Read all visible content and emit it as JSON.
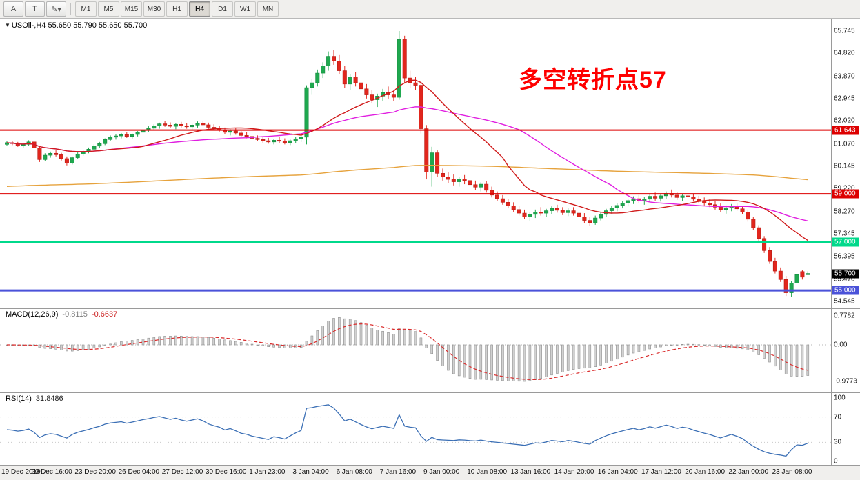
{
  "toolbar": {
    "buttons": [
      {
        "label": "A",
        "name": "font-tool-button"
      },
      {
        "label": "T",
        "name": "text-tool-button"
      },
      {
        "label": "✎▾",
        "name": "drawing-tools-button"
      }
    ],
    "timeframes": [
      {
        "label": "M1"
      },
      {
        "label": "M5"
      },
      {
        "label": "M15"
      },
      {
        "label": "M30"
      },
      {
        "label": "H1"
      },
      {
        "label": "H4",
        "active": true
      },
      {
        "label": "D1"
      },
      {
        "label": "W1"
      },
      {
        "label": "MN"
      }
    ]
  },
  "chart": {
    "symbol": "USOil-,H4",
    "ohlc": "55.650 55.790 55.650 55.700",
    "annotation": {
      "text": "多空转折点57",
      "color": "#ff0000"
    }
  },
  "panels": {
    "macd": {
      "label": "MACD(12,26,9)",
      "value": "-0.8115",
      "signal_value": "-0.6637",
      "scale_labels": [
        "0.7782",
        "0.00",
        "-0.9773"
      ]
    },
    "rsi": {
      "label": "RSI(14)",
      "value": "31.8486",
      "scale_labels": [
        "100",
        "70",
        "30",
        "0"
      ]
    }
  },
  "chart_data": {
    "type": "candlestick",
    "symbol": "USOil-",
    "timeframe": "H4",
    "title": "USOil-,H4 55.650 55.790 55.650 55.700",
    "current_bar": {
      "open": 55.65,
      "high": 55.79,
      "low": 55.65,
      "close": 55.7
    },
    "y_axis": {
      "max": 65.745,
      "min": 54.545,
      "labels": [
        65.745,
        64.82,
        63.87,
        62.945,
        62.02,
        61.07,
        60.145,
        59.22,
        58.27,
        57.345,
        56.395,
        55.47,
        54.545
      ]
    },
    "x_labels": [
      "19 Dec 2019",
      "20 Dec 16:00",
      "23 Dec 20:00",
      "26 Dec 04:00",
      "27 Dec 12:00",
      "30 Dec 16:00",
      "1 Jan 23:00",
      "3 Jan 04:00",
      "6 Jan 08:00",
      "7 Jan 16:00",
      "9 Jan 00:00",
      "10 Jan 08:00",
      "13 Jan 16:00",
      "14 Jan 20:00",
      "16 Jan 04:00",
      "17 Jan 12:00",
      "20 Jan 16:00",
      "22 Jan 00:00",
      "23 Jan 08:00"
    ],
    "x_label_every_n_candles": 8,
    "candles": [
      [
        61.05,
        61.18,
        60.98,
        61.12
      ],
      [
        61.12,
        61.2,
        61.02,
        61.08
      ],
      [
        61.08,
        61.15,
        60.95,
        61.0
      ],
      [
        61.0,
        61.12,
        60.92,
        61.05
      ],
      [
        61.05,
        61.22,
        61.0,
        61.15
      ],
      [
        61.15,
        61.18,
        60.85,
        60.9
      ],
      [
        60.9,
        60.95,
        60.32,
        60.42
      ],
      [
        60.42,
        60.68,
        60.35,
        60.6
      ],
      [
        60.6,
        60.75,
        60.5,
        60.68
      ],
      [
        60.68,
        60.8,
        60.55,
        60.62
      ],
      [
        60.62,
        60.7,
        60.38,
        60.46
      ],
      [
        60.46,
        60.55,
        60.18,
        60.28
      ],
      [
        60.28,
        60.55,
        60.22,
        60.5
      ],
      [
        60.5,
        60.72,
        60.44,
        60.65
      ],
      [
        60.65,
        60.82,
        60.58,
        60.75
      ],
      [
        60.75,
        60.92,
        60.68,
        60.85
      ],
      [
        60.85,
        61.05,
        60.78,
        60.98
      ],
      [
        60.98,
        61.15,
        60.9,
        61.08
      ],
      [
        61.08,
        61.3,
        61.02,
        61.25
      ],
      [
        61.25,
        61.42,
        61.18,
        61.35
      ],
      [
        61.35,
        61.48,
        61.25,
        61.4
      ],
      [
        61.4,
        61.52,
        61.3,
        61.45
      ],
      [
        61.45,
        61.55,
        61.32,
        61.38
      ],
      [
        61.38,
        61.5,
        61.28,
        61.46
      ],
      [
        61.46,
        61.6,
        61.38,
        61.55
      ],
      [
        61.55,
        61.7,
        61.48,
        61.65
      ],
      [
        61.65,
        61.8,
        61.55,
        61.72
      ],
      [
        61.72,
        61.88,
        61.62,
        61.82
      ],
      [
        61.82,
        61.95,
        61.7,
        61.9
      ],
      [
        61.9,
        62.02,
        61.78,
        61.85
      ],
      [
        61.85,
        61.96,
        61.72,
        61.8
      ],
      [
        61.8,
        61.92,
        61.68,
        61.88
      ],
      [
        61.88,
        61.98,
        61.75,
        61.82
      ],
      [
        61.82,
        61.94,
        61.7,
        61.78
      ],
      [
        61.78,
        61.9,
        61.65,
        61.85
      ],
      [
        61.85,
        62.0,
        61.75,
        61.92
      ],
      [
        61.92,
        62.02,
        61.8,
        61.86
      ],
      [
        61.86,
        61.95,
        61.7,
        61.76
      ],
      [
        61.76,
        61.88,
        61.62,
        61.7
      ],
      [
        61.7,
        61.82,
        61.58,
        61.65
      ],
      [
        61.65,
        61.75,
        61.48,
        61.55
      ],
      [
        61.55,
        61.68,
        61.42,
        61.6
      ],
      [
        61.6,
        61.72,
        61.45,
        61.52
      ],
      [
        61.52,
        61.6,
        61.35,
        61.42
      ],
      [
        61.42,
        61.55,
        61.3,
        61.38
      ],
      [
        61.38,
        61.48,
        61.22,
        61.3
      ],
      [
        61.3,
        61.42,
        61.18,
        61.25
      ],
      [
        61.25,
        61.38,
        61.12,
        61.2
      ],
      [
        61.2,
        61.32,
        61.08,
        61.15
      ],
      [
        61.15,
        61.28,
        61.05,
        61.22
      ],
      [
        61.22,
        61.35,
        61.1,
        61.18
      ],
      [
        61.18,
        61.3,
        61.05,
        61.12
      ],
      [
        61.12,
        61.25,
        61.02,
        61.2
      ],
      [
        61.2,
        61.35,
        61.1,
        61.28
      ],
      [
        61.28,
        61.45,
        61.15,
        61.35
      ],
      [
        61.35,
        63.5,
        61.05,
        63.4
      ],
      [
        63.4,
        63.75,
        63.1,
        63.6
      ],
      [
        63.6,
        64.15,
        63.45,
        64.0
      ],
      [
        64.0,
        64.45,
        63.8,
        64.3
      ],
      [
        64.3,
        64.9,
        64.1,
        64.7
      ],
      [
        64.7,
        64.97,
        64.35,
        64.5
      ],
      [
        64.5,
        64.75,
        63.95,
        64.1
      ],
      [
        64.1,
        64.3,
        63.4,
        63.55
      ],
      [
        63.55,
        63.95,
        63.3,
        63.85
      ],
      [
        63.85,
        64.05,
        63.45,
        63.6
      ],
      [
        63.6,
        63.8,
        63.2,
        63.35
      ],
      [
        63.35,
        63.55,
        62.95,
        63.1
      ],
      [
        63.1,
        63.3,
        62.75,
        62.9
      ],
      [
        62.9,
        63.15,
        62.6,
        63.05
      ],
      [
        63.05,
        63.35,
        62.85,
        63.2
      ],
      [
        63.2,
        63.45,
        62.95,
        63.1
      ],
      [
        63.1,
        63.3,
        62.85,
        63.0
      ],
      [
        63.0,
        65.745,
        62.9,
        65.4
      ],
      [
        65.4,
        65.55,
        63.6,
        63.8
      ],
      [
        63.8,
        64.1,
        63.4,
        63.6
      ],
      [
        63.6,
        63.85,
        63.3,
        63.5
      ],
      [
        63.5,
        63.6,
        61.5,
        61.7
      ],
      [
        61.7,
        61.85,
        59.6,
        59.9
      ],
      [
        59.9,
        60.95,
        59.3,
        60.7
      ],
      [
        60.7,
        60.8,
        59.7,
        59.85
      ],
      [
        59.85,
        60.05,
        59.55,
        59.7
      ],
      [
        59.7,
        59.9,
        59.45,
        59.6
      ],
      [
        59.6,
        59.8,
        59.35,
        59.5
      ],
      [
        59.5,
        59.7,
        59.3,
        59.62
      ],
      [
        59.62,
        59.78,
        59.4,
        59.55
      ],
      [
        59.55,
        59.7,
        59.25,
        59.38
      ],
      [
        59.38,
        59.55,
        59.15,
        59.28
      ],
      [
        59.28,
        59.48,
        59.1,
        59.4
      ],
      [
        59.4,
        59.52,
        59.05,
        59.15
      ],
      [
        59.15,
        59.3,
        58.85,
        58.95
      ],
      [
        58.95,
        59.1,
        58.7,
        58.8
      ],
      [
        58.8,
        58.95,
        58.55,
        58.65
      ],
      [
        58.65,
        58.8,
        58.4,
        58.5
      ],
      [
        58.5,
        58.65,
        58.25,
        58.35
      ],
      [
        58.35,
        58.5,
        58.1,
        58.2
      ],
      [
        58.2,
        58.35,
        57.95,
        58.05
      ],
      [
        58.05,
        58.25,
        57.88,
        58.15
      ],
      [
        58.15,
        58.35,
        58.0,
        58.25
      ],
      [
        58.25,
        58.45,
        58.1,
        58.2
      ],
      [
        58.2,
        58.38,
        58.05,
        58.3
      ],
      [
        58.3,
        58.48,
        58.15,
        58.4
      ],
      [
        58.4,
        58.55,
        58.22,
        58.32
      ],
      [
        58.32,
        58.45,
        58.12,
        58.22
      ],
      [
        58.22,
        58.4,
        58.08,
        58.3
      ],
      [
        58.3,
        58.45,
        58.1,
        58.2
      ],
      [
        58.2,
        58.35,
        57.95,
        58.05
      ],
      [
        58.05,
        58.2,
        57.78,
        57.9
      ],
      [
        57.9,
        58.05,
        57.68,
        57.8
      ],
      [
        57.8,
        58.1,
        57.72,
        58.0
      ],
      [
        58.0,
        58.25,
        57.9,
        58.15
      ],
      [
        58.15,
        58.38,
        58.05,
        58.3
      ],
      [
        58.3,
        58.5,
        58.18,
        58.42
      ],
      [
        58.42,
        58.6,
        58.28,
        58.52
      ],
      [
        58.52,
        58.7,
        58.4,
        58.62
      ],
      [
        58.62,
        58.8,
        58.48,
        58.72
      ],
      [
        58.72,
        58.9,
        58.58,
        58.8
      ],
      [
        58.8,
        58.95,
        58.62,
        58.7
      ],
      [
        58.7,
        58.88,
        58.55,
        58.78
      ],
      [
        58.78,
        58.98,
        58.65,
        58.9
      ],
      [
        58.9,
        59.05,
        58.72,
        58.82
      ],
      [
        58.82,
        59.0,
        58.68,
        58.92
      ],
      [
        58.92,
        59.1,
        58.78,
        59.02
      ],
      [
        59.02,
        59.18,
        58.85,
        58.95
      ],
      [
        58.95,
        59.08,
        58.75,
        58.85
      ],
      [
        58.85,
        59.0,
        58.7,
        58.92
      ],
      [
        58.92,
        59.05,
        58.78,
        58.88
      ],
      [
        58.88,
        58.98,
        58.68,
        58.78
      ],
      [
        58.78,
        58.92,
        58.6,
        58.7
      ],
      [
        58.7,
        58.85,
        58.52,
        58.62
      ],
      [
        58.62,
        58.78,
        58.45,
        58.55
      ],
      [
        58.55,
        58.7,
        58.35,
        58.45
      ],
      [
        58.45,
        58.6,
        58.25,
        58.35
      ],
      [
        58.35,
        58.52,
        58.18,
        58.42
      ],
      [
        58.42,
        58.58,
        58.28,
        58.48
      ],
      [
        58.48,
        58.6,
        58.3,
        58.38
      ],
      [
        58.38,
        58.5,
        58.15,
        58.25
      ],
      [
        58.25,
        58.35,
        57.85,
        57.95
      ],
      [
        57.95,
        58.05,
        57.5,
        57.6
      ],
      [
        57.6,
        57.7,
        57.05,
        57.15
      ],
      [
        57.15,
        57.25,
        56.55,
        56.65
      ],
      [
        56.65,
        56.8,
        56.1,
        56.2
      ],
      [
        56.2,
        56.35,
        55.7,
        55.8
      ],
      [
        55.8,
        55.95,
        55.35,
        55.45
      ],
      [
        55.45,
        55.6,
        54.77,
        54.9
      ],
      [
        54.9,
        55.4,
        54.72,
        55.3
      ],
      [
        55.3,
        55.75,
        55.15,
        55.65
      ],
      [
        55.78,
        55.85,
        55.45,
        55.55
      ],
      [
        55.65,
        55.79,
        55.65,
        55.7
      ]
    ],
    "colors": {
      "up": "#1fa84f",
      "down": "#e1261d",
      "up_border": "#128a3d",
      "down_border": "#b71c14"
    },
    "hlines": [
      {
        "price": 61.643,
        "label": "61.643",
        "color": "#dd0000",
        "width": 2
      },
      {
        "price": 59.0,
        "label": "59.000",
        "color": "#dd0000",
        "width": 2
      },
      {
        "price": 57.0,
        "label": "57.000",
        "color": "#00d98b",
        "width": 3
      },
      {
        "price": 55.0,
        "label": "55.000",
        "color": "#4a52d9",
        "width": 3
      }
    ],
    "current_price_label": {
      "price": 55.7,
      "text": "55.700",
      "bg": "#000000"
    },
    "moving_averages": [
      {
        "name": "ma-long",
        "type": "ema-seeded",
        "alpha": 0.005,
        "seed": 59.3,
        "color": "#e6a23c"
      },
      {
        "name": "ma-slow",
        "type": "sma",
        "period": 40,
        "color": "#e01ee0"
      },
      {
        "name": "ma-fast",
        "type": "sma",
        "period": 20,
        "color": "#d01b1b"
      }
    ],
    "macd": {
      "fast": 12,
      "slow": 26,
      "signal": 9,
      "last_value": -0.8115,
      "last_signal": -0.6637,
      "scale_max": 0.7782,
      "scale_min": -0.9773,
      "histogram_fill": "#d2d2d2",
      "histogram_border": "#8e8e8e",
      "signal_color": "#d92b2b"
    },
    "rsi": {
      "period": 14,
      "last_value": 31.8486,
      "color": "#3b6fb5",
      "levels": [
        70,
        30
      ],
      "range": [
        0,
        100
      ]
    }
  }
}
